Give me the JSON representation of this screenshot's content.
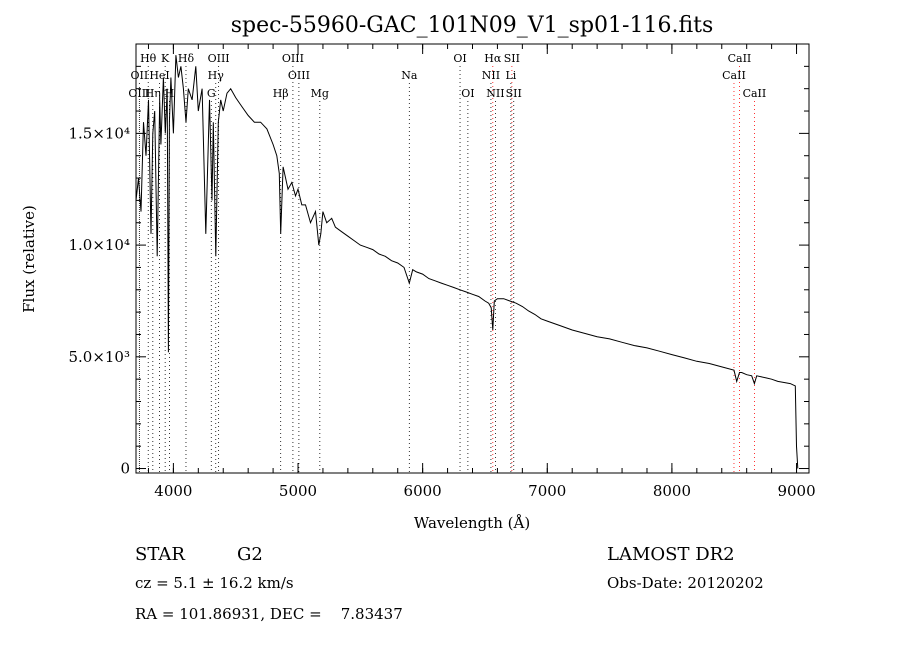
{
  "chart_data": {
    "type": "line",
    "title": "spec-55960-GAC_101N09_V1_sp01-116.fits",
    "xlabel": "Wavelength (Å)",
    "ylabel": "Flux (relative)",
    "xlim": [
      3700,
      9100
    ],
    "ylim": [
      -200,
      19000
    ],
    "x_ticks": [
      {
        "value": 4000,
        "label": "4000"
      },
      {
        "value": 5000,
        "label": "5000"
      },
      {
        "value": 6000,
        "label": "6000"
      },
      {
        "value": 7000,
        "label": "7000"
      },
      {
        "value": 8000,
        "label": "8000"
      },
      {
        "value": 9000,
        "label": "9000"
      }
    ],
    "y_ticks": [
      {
        "value": 0,
        "label": "0"
      },
      {
        "value": 5000,
        "label": "5.0×10³"
      },
      {
        "value": 10000,
        "label": "1.0×10⁴"
      },
      {
        "value": 15000,
        "label": "1.5×10⁴"
      }
    ],
    "grid": false,
    "spectrum": {
      "x": [
        3700,
        3720,
        3740,
        3760,
        3780,
        3800,
        3820,
        3835,
        3850,
        3870,
        3890,
        3900,
        3920,
        3935,
        3950,
        3960,
        3968,
        3980,
        4000,
        4020,
        4040,
        4060,
        4080,
        4101,
        4120,
        4150,
        4180,
        4200,
        4230,
        4260,
        4290,
        4310,
        4320,
        4340,
        4360,
        4380,
        4400,
        4430,
        4460,
        4500,
        4550,
        4600,
        4650,
        4700,
        4750,
        4800,
        4830,
        4850,
        4861,
        4880,
        4900,
        4920,
        4950,
        4980,
        5000,
        5030,
        5060,
        5100,
        5140,
        5167,
        5183,
        5200,
        5230,
        5270,
        5300,
        5350,
        5400,
        5450,
        5500,
        5550,
        5600,
        5650,
        5700,
        5750,
        5800,
        5850,
        5893,
        5920,
        5950,
        6000,
        6050,
        6100,
        6150,
        6200,
        6250,
        6300,
        6350,
        6400,
        6450,
        6500,
        6530,
        6550,
        6563,
        6575,
        6600,
        6650,
        6700,
        6750,
        6800,
        6850,
        6900,
        6950,
        7000,
        7100,
        7200,
        7300,
        7400,
        7500,
        7600,
        7700,
        7800,
        7900,
        8000,
        8100,
        8200,
        8300,
        8400,
        8498,
        8520,
        8542,
        8560,
        8600,
        8640,
        8662,
        8680,
        8720,
        8760,
        8800,
        8850,
        8900,
        8950,
        8990,
        9000,
        9010
      ],
      "y": [
        12000,
        13000,
        11500,
        15500,
        14000,
        16500,
        10500,
        15000,
        16000,
        9500,
        16500,
        14500,
        17500,
        15000,
        17000,
        5200,
        15500,
        17500,
        15000,
        18500,
        17500,
        18000,
        17000,
        15500,
        17000,
        16500,
        18000,
        16000,
        17000,
        10500,
        16500,
        12000,
        15500,
        9500,
        15500,
        16500,
        16000,
        16800,
        17000,
        16600,
        16200,
        15800,
        15500,
        15500,
        15200,
        14500,
        14000,
        13200,
        10500,
        13500,
        13000,
        12500,
        12800,
        12200,
        12500,
        11800,
        11800,
        11000,
        11500,
        10000,
        10500,
        11500,
        11000,
        11200,
        10800,
        10600,
        10400,
        10200,
        10000,
        9900,
        9800,
        9600,
        9500,
        9300,
        9200,
        9000,
        8300,
        8900,
        8800,
        8700,
        8500,
        8400,
        8300,
        8200,
        8100,
        8000,
        7900,
        7800,
        7700,
        7500,
        7400,
        7200,
        6200,
        7500,
        7600,
        7600,
        7500,
        7400,
        7250,
        7050,
        6900,
        6700,
        6600,
        6400,
        6200,
        6050,
        5900,
        5800,
        5650,
        5500,
        5400,
        5250,
        5100,
        4950,
        4800,
        4700,
        4550,
        4400,
        3900,
        4300,
        4300,
        4200,
        4150,
        3800,
        4150,
        4100,
        4050,
        4000,
        3900,
        3850,
        3800,
        3700,
        1000,
        0
      ]
    },
    "lines": [
      {
        "name": "Hθ",
        "wavelength": 3798,
        "row": 0,
        "color": "#000000"
      },
      {
        "name": "K",
        "wavelength": 3934,
        "row": 0,
        "color": "#000000"
      },
      {
        "name": "Hδ",
        "wavelength": 4101,
        "row": 0,
        "color": "#000000"
      },
      {
        "name": "OIII",
        "wavelength": 4363,
        "row": 0,
        "color": "#000000"
      },
      {
        "name": "OIII",
        "wavelength": 4959,
        "row": 0,
        "color": "#000000"
      },
      {
        "name": "OI",
        "wavelength": 6300,
        "row": 0,
        "color": "#000000"
      },
      {
        "name": "Hα",
        "wavelength": 6563,
        "row": 0,
        "color": "#ff0000"
      },
      {
        "name": "SII",
        "wavelength": 6716,
        "row": 0,
        "color": "#ff0000"
      },
      {
        "name": "CaII",
        "wavelength": 8542,
        "row": 0,
        "color": "#ff0000"
      },
      {
        "name": "OII",
        "wavelength": 3727,
        "row": 1,
        "color": "#000000"
      },
      {
        "name": "HeI",
        "wavelength": 3889,
        "row": 1,
        "color": "#000000"
      },
      {
        "name": "Hγ",
        "wavelength": 4340,
        "row": 1,
        "color": "#000000"
      },
      {
        "name": "OIII",
        "wavelength": 5007,
        "row": 1,
        "color": "#000000"
      },
      {
        "name": "Na",
        "wavelength": 5893,
        "row": 1,
        "color": "#000000"
      },
      {
        "name": "NII",
        "wavelength": 6548,
        "row": 1,
        "color": "#000000"
      },
      {
        "name": "Li",
        "wavelength": 6708,
        "row": 1,
        "color": "#000000"
      },
      {
        "name": "CaII",
        "wavelength": 8498,
        "row": 1,
        "color": "#ff0000"
      },
      {
        "name": "OIII",
        "wavelength": 3727,
        "row": 2,
        "color": "#000000"
      },
      {
        "name": "Hη",
        "wavelength": 3835,
        "row": 2,
        "color": "#000000"
      },
      {
        "name": "H",
        "wavelength": 3968,
        "row": 2,
        "color": "#000000"
      },
      {
        "name": "G",
        "wavelength": 4304,
        "row": 2,
        "color": "#000000"
      },
      {
        "name": "Hβ",
        "wavelength": 4861,
        "row": 2,
        "color": "#000000"
      },
      {
        "name": "Mg",
        "wavelength": 5175,
        "row": 2,
        "color": "#000000"
      },
      {
        "name": "OI",
        "wavelength": 6363,
        "row": 2,
        "color": "#000000"
      },
      {
        "name": "NII",
        "wavelength": 6584,
        "row": 2,
        "color": "#000000"
      },
      {
        "name": "SII",
        "wavelength": 6731,
        "row": 2,
        "color": "#000000"
      },
      {
        "name": "CaII",
        "wavelength": 8662,
        "row": 2,
        "color": "#ff0000"
      }
    ]
  },
  "info": {
    "object_class": "STAR",
    "subclass": "G2",
    "redshift": "cz = 5.1 ± 16.2 km/s",
    "coords": "RA = 101.86931, DEC =    7.83437",
    "survey": "LAMOST DR2",
    "obs_date": "Obs-Date: 20120202"
  }
}
